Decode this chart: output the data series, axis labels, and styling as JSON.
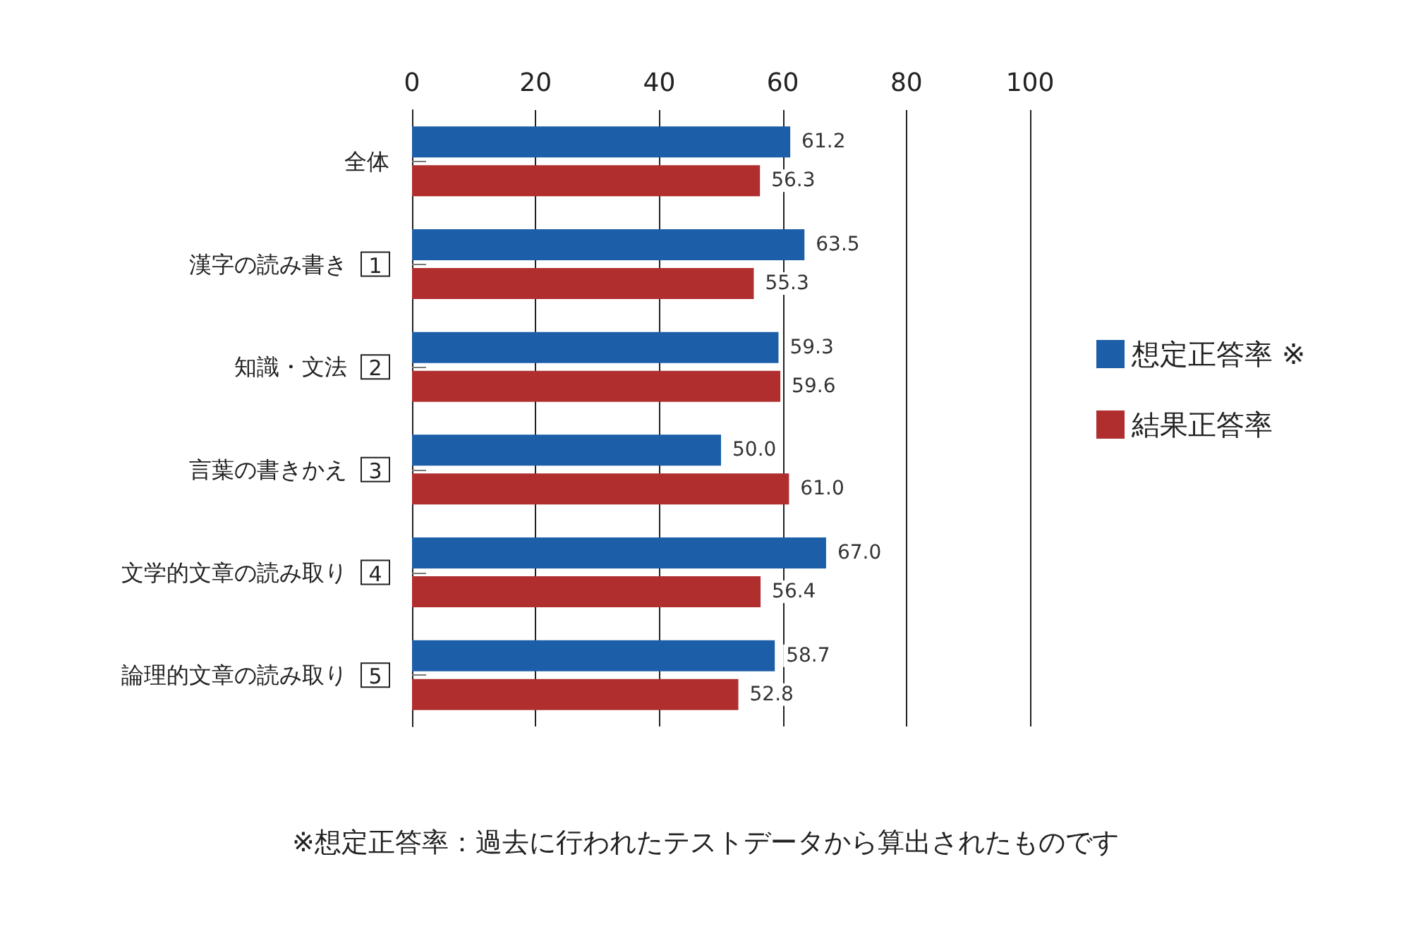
{
  "chart_data": {
    "type": "bar",
    "orientation": "horizontal",
    "categories": [
      "全体",
      "漢字の読み書き 1",
      "知識・文法 2",
      "言葉の書きかえ 3",
      "文学的文章の読み取り 4",
      "論理的文章の読み取り 5"
    ],
    "series": [
      {
        "name": "想定正答率 ※",
        "color": "#1c5ea8",
        "values": [
          61.2,
          63.5,
          59.3,
          50.0,
          67.0,
          58.7
        ],
        "value_labels": [
          "61.2",
          "63.5",
          "59.3",
          "50.0",
          "67.0",
          "58.7"
        ]
      },
      {
        "name": "結果正答率",
        "color": "#b02e2e",
        "values": [
          56.3,
          55.3,
          59.6,
          61.0,
          56.4,
          52.8
        ],
        "value_labels": [
          "56.3",
          "55.3",
          "59.6",
          "61.0",
          "56.4",
          "52.8"
        ]
      }
    ],
    "xlim": [
      0,
      100
    ],
    "xticks": [
      0,
      20,
      40,
      60,
      80,
      100
    ],
    "grid": "x",
    "legend": "right",
    "annotations": [
      "※想定正答率：過去に行われたテストデータから算出されたものです"
    ]
  }
}
